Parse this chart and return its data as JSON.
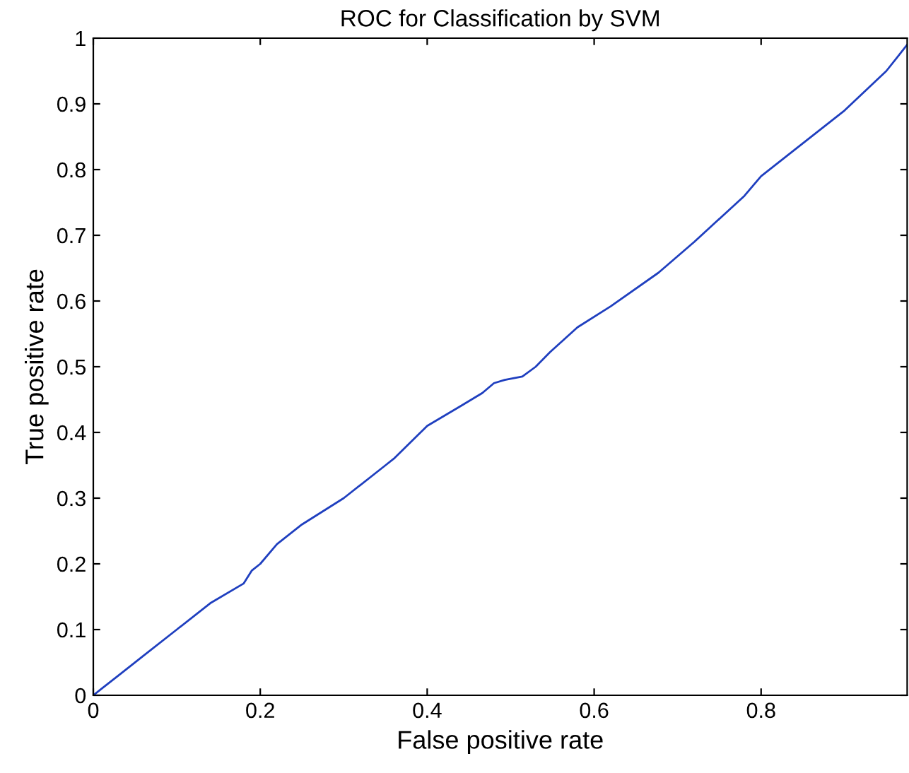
{
  "chart_data": {
    "type": "line",
    "title": "ROC for Classification by SVM",
    "xlabel": "False positive rate",
    "ylabel": "True positive rate",
    "series": [
      {
        "color": "#1f3fbf",
        "x": [
          0,
          0.01,
          0.03,
          0.06,
          0.1,
          0.14,
          0.18,
          0.19,
          0.2,
          0.22,
          0.25,
          0.3,
          0.35,
          0.36,
          0.4,
          0.44,
          0.466,
          0.48,
          0.493,
          0.514,
          0.53,
          0.547,
          0.58,
          0.62,
          0.677,
          0.72,
          0.78,
          0.8,
          0.84,
          0.9,
          0.95,
          0.975
        ],
        "values": [
          0,
          0.01,
          0.03,
          0.06,
          0.1,
          0.14,
          0.17,
          0.19,
          0.2,
          0.23,
          0.26,
          0.3,
          0.35,
          0.36,
          0.41,
          0.44,
          0.46,
          0.475,
          0.48,
          0.485,
          0.5,
          0.522,
          0.56,
          0.592,
          0.643,
          0.69,
          0.76,
          0.79,
          0.83,
          0.89,
          0.95,
          0.99
        ]
      }
    ],
    "xlim": [
      0,
      0.975
    ],
    "ylim": [
      0,
      1
    ],
    "xticks": [
      0,
      0.2,
      0.4,
      0.6,
      0.8
    ],
    "yticks": [
      0,
      0.1,
      0.2,
      0.3,
      0.4,
      0.5,
      0.6,
      0.7,
      0.8,
      0.9,
      1
    ],
    "grid": false,
    "legend": false
  }
}
